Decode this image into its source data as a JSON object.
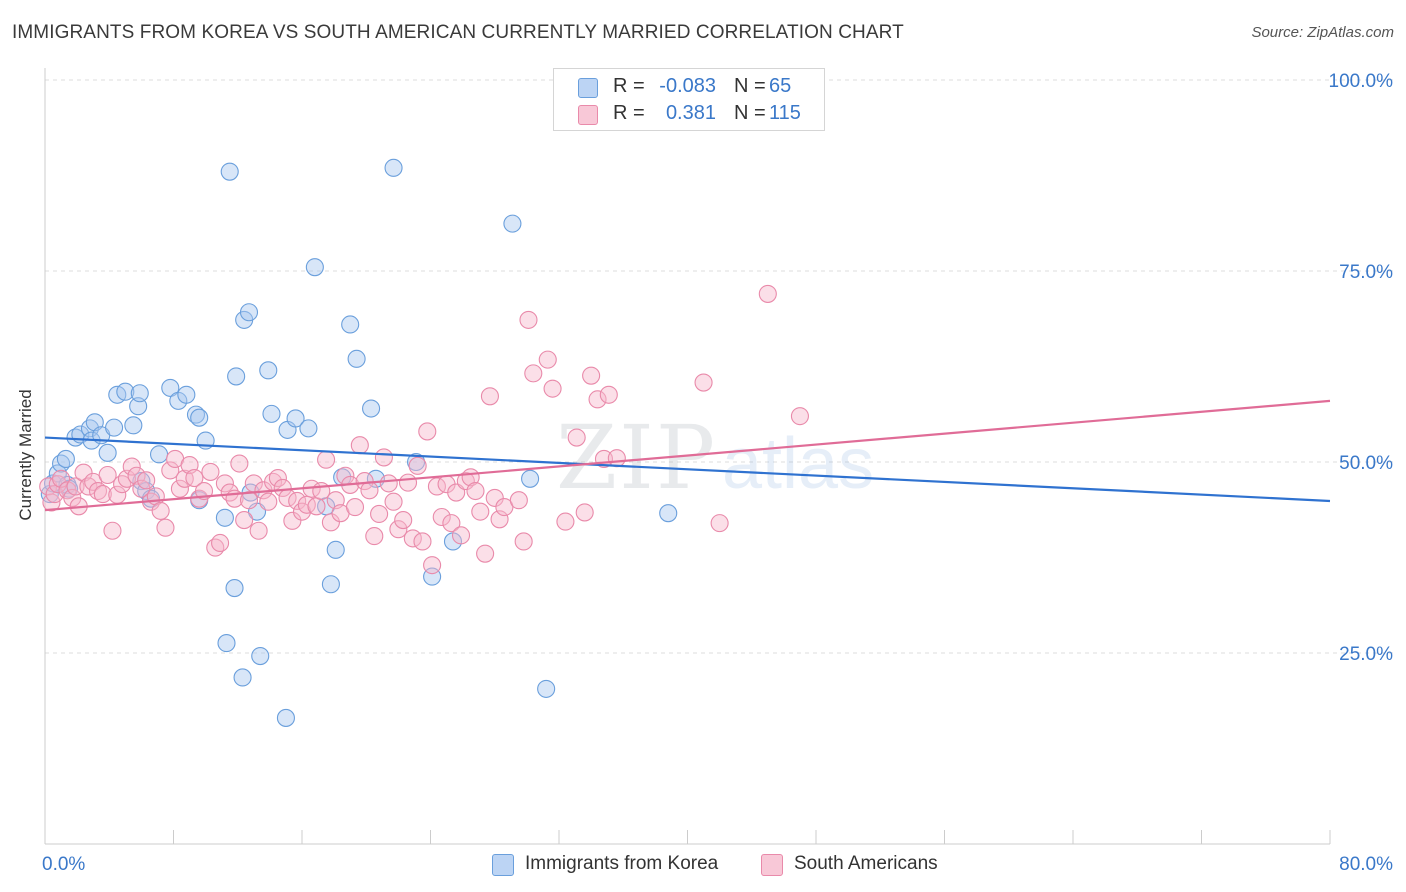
{
  "header": {
    "title": "IMMIGRANTS FROM KOREA VS SOUTH AMERICAN CURRENTLY MARRIED CORRELATION CHART",
    "source": "Source: ZipAtlas.com"
  },
  "watermark": {
    "text_zip": "ZIP",
    "text_atlas": "atlas"
  },
  "legend_top": {
    "rows": [
      {
        "r_label": "R =",
        "r_value": "-0.083",
        "n_label": "N =",
        "n_value": "65"
      },
      {
        "r_label": "R =",
        "r_value": "0.381",
        "n_label": "N =",
        "n_value": "115"
      }
    ]
  },
  "legend_bottom": {
    "items": [
      {
        "label": "Immigrants from Korea"
      },
      {
        "label": "South Americans"
      }
    ]
  },
  "colors": {
    "blue_fill": "#a9c8f0",
    "blue_stroke": "#6a9fdc",
    "blue_line": "#2f72d0",
    "pink_fill": "#f6b8cc",
    "pink_stroke": "#e98aaa",
    "pink_line": "#e06c97",
    "tick_label": "#3a78c9",
    "grid": "#dddddd",
    "axis": "#cccccc"
  },
  "chart_data": {
    "type": "scatter",
    "title": "IMMIGRANTS FROM KOREA VS SOUTH AMERICAN CURRENTLY MARRIED CORRELATION CHART",
    "xlabel": "",
    "ylabel": "Currently Married",
    "xlim": [
      0,
      80
    ],
    "ylim": [
      0,
      105
    ],
    "x_tick_labels": [
      "0.0%",
      "80.0%"
    ],
    "y_ticks": [
      25,
      50,
      75,
      100
    ],
    "y_tick_labels": [
      "25.0%",
      "50.0%",
      "75.0%",
      "100.0%"
    ],
    "grid": "horizontal dashed",
    "legend": "bottom",
    "series": [
      {
        "name": "Immigrants from Korea",
        "color": "blue",
        "trend": {
          "x": [
            0,
            80
          ],
          "y": [
            53.2,
            44.9
          ]
        },
        "points": [
          [
            0.3,
            45.8
          ],
          [
            0.5,
            47.2
          ],
          [
            0.8,
            48.5
          ],
          [
            1.0,
            49.8
          ],
          [
            1.3,
            50.4
          ],
          [
            1.4,
            47.0
          ],
          [
            1.5,
            46.5
          ],
          [
            1.9,
            53.2
          ],
          [
            2.2,
            53.6
          ],
          [
            2.8,
            54.4
          ],
          [
            2.9,
            52.8
          ],
          [
            3.1,
            55.2
          ],
          [
            3.5,
            53.5
          ],
          [
            3.9,
            51.2
          ],
          [
            4.3,
            54.5
          ],
          [
            4.5,
            58.8
          ],
          [
            5.0,
            59.2
          ],
          [
            5.5,
            54.8
          ],
          [
            5.8,
            57.3
          ],
          [
            5.9,
            59.0
          ],
          [
            6.0,
            47.5
          ],
          [
            6.3,
            46.2
          ],
          [
            6.6,
            45.2
          ],
          [
            7.1,
            51.0
          ],
          [
            7.8,
            59.7
          ],
          [
            8.3,
            58.0
          ],
          [
            8.8,
            58.8
          ],
          [
            9.4,
            56.2
          ],
          [
            9.6,
            55.8
          ],
          [
            10.0,
            52.8
          ],
          [
            11.2,
            42.7
          ],
          [
            11.9,
            61.2
          ],
          [
            12.4,
            68.6
          ],
          [
            12.7,
            69.6
          ],
          [
            13.9,
            62.0
          ],
          [
            14.1,
            56.3
          ],
          [
            15.1,
            54.2
          ],
          [
            15.6,
            55.7
          ],
          [
            16.4,
            54.4
          ],
          [
            17.5,
            44.2
          ],
          [
            18.5,
            48.0
          ],
          [
            19.0,
            68.0
          ],
          [
            19.4,
            63.5
          ],
          [
            20.3,
            57.0
          ],
          [
            20.6,
            47.8
          ],
          [
            21.7,
            88.5
          ],
          [
            23.1,
            50.0
          ],
          [
            24.1,
            35.0
          ],
          [
            25.4,
            39.6
          ],
          [
            29.1,
            81.2
          ],
          [
            30.2,
            47.8
          ],
          [
            31.2,
            20.3
          ],
          [
            38.8,
            43.3
          ],
          [
            11.8,
            33.5
          ],
          [
            12.3,
            21.8
          ],
          [
            13.4,
            24.6
          ],
          [
            13.2,
            43.5
          ],
          [
            15.0,
            16.5
          ],
          [
            11.3,
            26.3
          ],
          [
            11.5,
            88.0
          ],
          [
            16.8,
            75.5
          ],
          [
            18.1,
            38.5
          ],
          [
            9.6,
            45.0
          ],
          [
            12.8,
            46.0
          ],
          [
            17.8,
            34.0
          ]
        ]
      },
      {
        "name": "South Americans",
        "color": "pink",
        "trend": {
          "x": [
            0,
            80
          ],
          "y": [
            43.7,
            58.0
          ]
        },
        "points": [
          [
            0.2,
            46.8
          ],
          [
            0.4,
            44.7
          ],
          [
            0.6,
            45.8
          ],
          [
            0.8,
            47.1
          ],
          [
            1.0,
            47.8
          ],
          [
            1.4,
            46.3
          ],
          [
            1.7,
            45.3
          ],
          [
            1.9,
            46.8
          ],
          [
            2.1,
            44.2
          ],
          [
            2.4,
            48.6
          ],
          [
            2.7,
            46.8
          ],
          [
            3.0,
            47.4
          ],
          [
            3.3,
            46.2
          ],
          [
            3.6,
            45.8
          ],
          [
            3.9,
            48.3
          ],
          [
            4.2,
            41.0
          ],
          [
            4.5,
            45.7
          ],
          [
            4.8,
            47.1
          ],
          [
            5.1,
            47.8
          ],
          [
            5.4,
            49.4
          ],
          [
            5.7,
            48.2
          ],
          [
            6.0,
            46.5
          ],
          [
            6.3,
            47.6
          ],
          [
            6.6,
            44.8
          ],
          [
            6.9,
            45.5
          ],
          [
            7.2,
            43.6
          ],
          [
            7.5,
            41.4
          ],
          [
            7.8,
            48.9
          ],
          [
            8.1,
            50.4
          ],
          [
            8.4,
            46.5
          ],
          [
            8.7,
            47.8
          ],
          [
            9.0,
            49.6
          ],
          [
            9.3,
            47.9
          ],
          [
            9.6,
            45.2
          ],
          [
            9.9,
            46.2
          ],
          [
            10.3,
            48.7
          ],
          [
            10.6,
            38.8
          ],
          [
            10.9,
            39.4
          ],
          [
            11.2,
            47.2
          ],
          [
            11.5,
            46.0
          ],
          [
            11.8,
            45.2
          ],
          [
            12.1,
            49.8
          ],
          [
            12.4,
            42.4
          ],
          [
            12.7,
            45.0
          ],
          [
            13.0,
            47.2
          ],
          [
            13.3,
            41.0
          ],
          [
            13.6,
            46.3
          ],
          [
            13.9,
            44.8
          ],
          [
            14.2,
            47.4
          ],
          [
            14.5,
            47.9
          ],
          [
            14.8,
            46.6
          ],
          [
            15.1,
            45.3
          ],
          [
            15.4,
            42.3
          ],
          [
            15.7,
            44.9
          ],
          [
            16.0,
            43.5
          ],
          [
            16.3,
            44.4
          ],
          [
            16.6,
            46.5
          ],
          [
            16.9,
            44.2
          ],
          [
            17.2,
            46.2
          ],
          [
            17.5,
            50.3
          ],
          [
            17.8,
            42.1
          ],
          [
            18.1,
            45.0
          ],
          [
            18.4,
            43.3
          ],
          [
            18.7,
            48.2
          ],
          [
            19.0,
            47.0
          ],
          [
            19.3,
            44.1
          ],
          [
            19.6,
            52.2
          ],
          [
            19.9,
            47.5
          ],
          [
            20.2,
            46.3
          ],
          [
            20.5,
            40.3
          ],
          [
            20.8,
            43.2
          ],
          [
            21.1,
            50.6
          ],
          [
            21.4,
            47.2
          ],
          [
            21.7,
            44.8
          ],
          [
            22.0,
            41.2
          ],
          [
            22.3,
            42.4
          ],
          [
            22.6,
            47.3
          ],
          [
            22.9,
            40.0
          ],
          [
            23.2,
            49.5
          ],
          [
            23.5,
            39.6
          ],
          [
            23.8,
            54.0
          ],
          [
            24.1,
            36.5
          ],
          [
            24.4,
            46.8
          ],
          [
            24.7,
            42.8
          ],
          [
            25.0,
            47.1
          ],
          [
            25.3,
            42.0
          ],
          [
            25.6,
            46.0
          ],
          [
            25.9,
            40.4
          ],
          [
            26.2,
            47.5
          ],
          [
            26.5,
            48.0
          ],
          [
            26.8,
            46.2
          ],
          [
            27.1,
            43.5
          ],
          [
            27.4,
            38.0
          ],
          [
            27.7,
            58.6
          ],
          [
            28.0,
            45.3
          ],
          [
            28.3,
            42.5
          ],
          [
            28.6,
            44.1
          ],
          [
            29.5,
            45.0
          ],
          [
            29.8,
            39.6
          ],
          [
            30.1,
            68.6
          ],
          [
            30.4,
            61.6
          ],
          [
            31.3,
            63.4
          ],
          [
            31.6,
            59.6
          ],
          [
            32.4,
            42.2
          ],
          [
            33.1,
            53.2
          ],
          [
            33.6,
            43.4
          ],
          [
            34.0,
            61.3
          ],
          [
            34.4,
            58.2
          ],
          [
            34.8,
            50.4
          ],
          [
            35.1,
            58.8
          ],
          [
            35.6,
            50.5
          ],
          [
            41.0,
            60.4
          ],
          [
            42.0,
            42.0
          ],
          [
            45.0,
            72.0
          ],
          [
            47.0,
            56.0
          ]
        ]
      }
    ]
  }
}
